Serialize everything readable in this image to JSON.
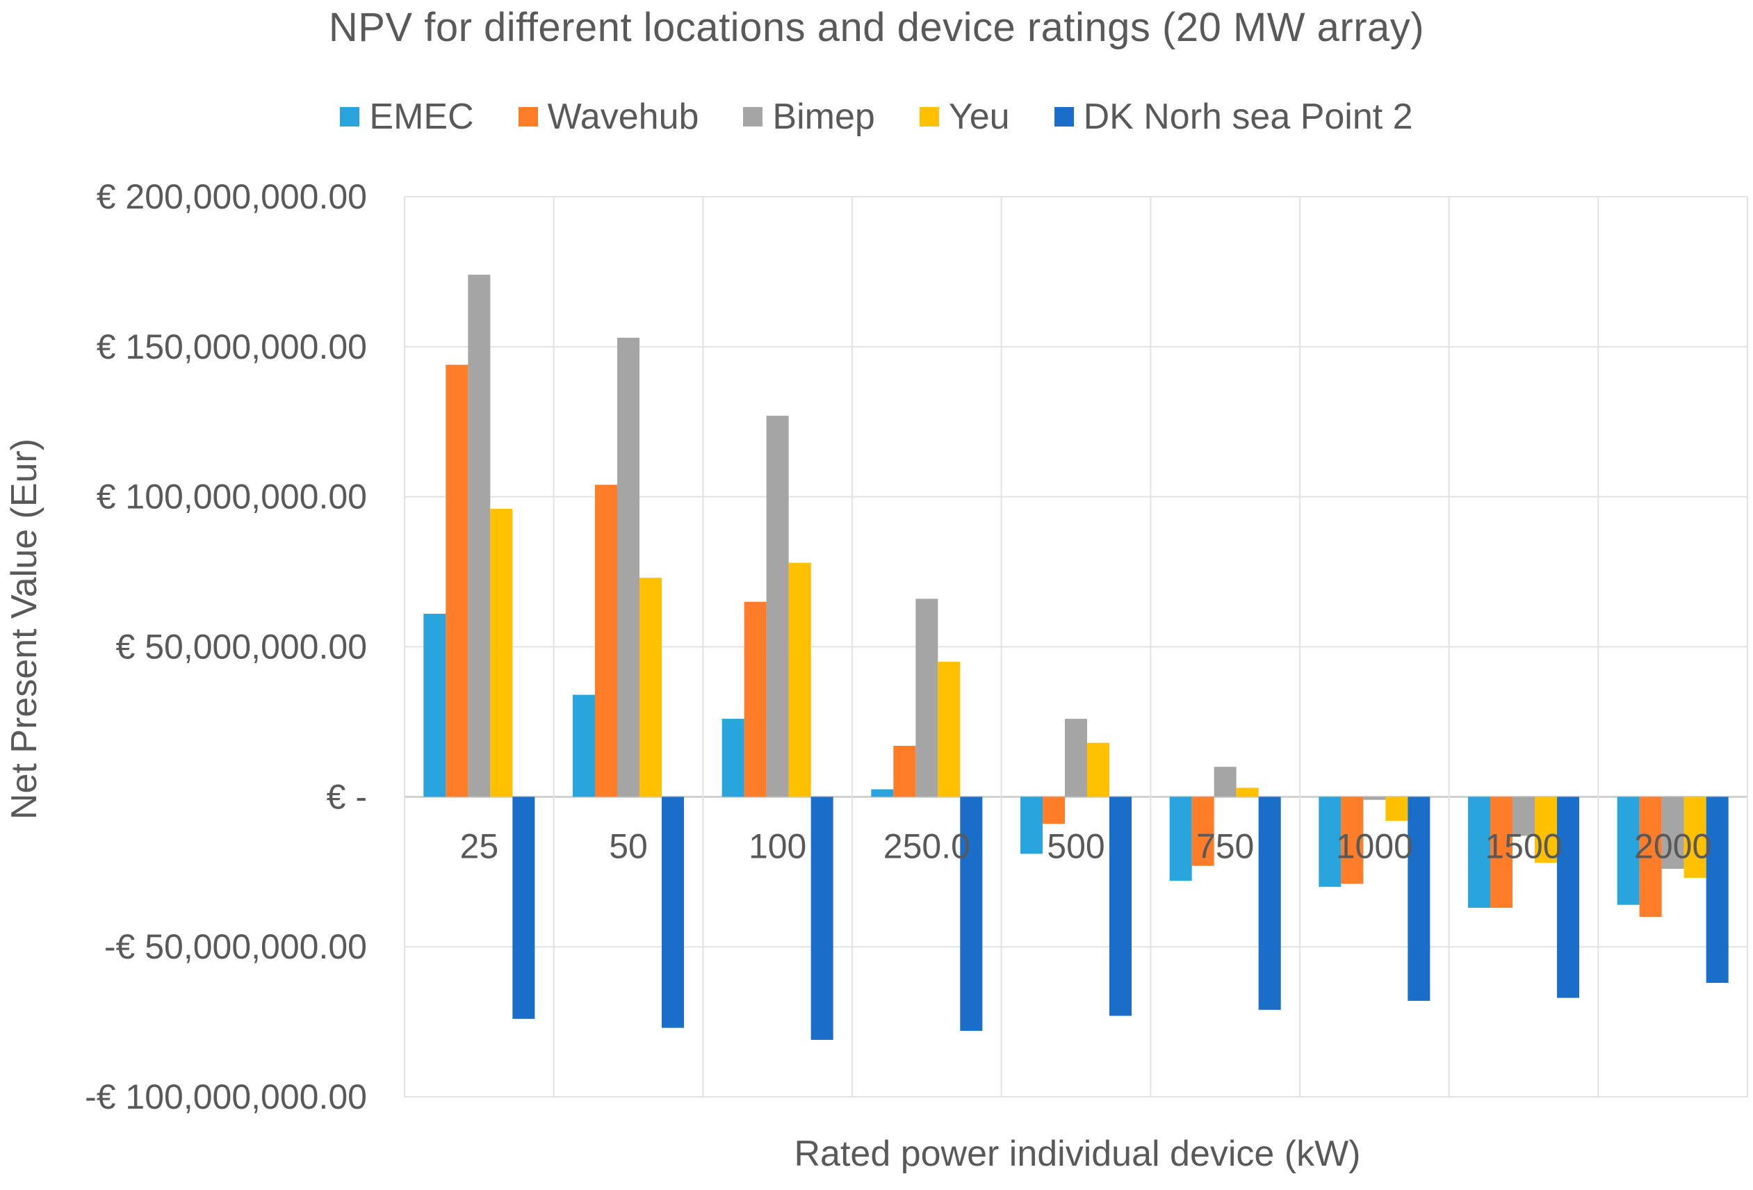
{
  "chart_data": {
    "type": "bar",
    "title": "NPV for different locations and device ratings (20 MW array)",
    "xlabel": "Rated power individual device (kW)",
    "ylabel": "Net Present Value (Eur)",
    "categories": [
      "25",
      "50",
      "100",
      "250.0",
      "500",
      "750",
      "1000",
      "1500",
      "2000"
    ],
    "ylim": [
      -100000000,
      200000000
    ],
    "yticks": [
      {
        "value": 200000000,
        "label": "€ 200,000,000.00"
      },
      {
        "value": 150000000,
        "label": "€ 150,000,000.00"
      },
      {
        "value": 100000000,
        "label": "€ 100,000,000.00"
      },
      {
        "value": 50000000,
        "label": "€ 50,000,000.00"
      },
      {
        "value": 0,
        "label": "€ -"
      },
      {
        "value": -50000000,
        "label": "-€ 50,000,000.00"
      },
      {
        "value": -100000000,
        "label": "-€ 100,000,000.00"
      }
    ],
    "grid": true,
    "legend_position": "top",
    "series": [
      {
        "name": "EMEC",
        "color": "#2aa4dd",
        "values": [
          61000000,
          34000000,
          26000000,
          2500000,
          -19000000,
          -28000000,
          -30000000,
          -37000000,
          -36000000
        ]
      },
      {
        "name": "Wavehub",
        "color": "#ff7c29",
        "values": [
          144000000,
          104000000,
          65000000,
          17000000,
          -9000000,
          -23000000,
          -29000000,
          -37000000,
          -40000000
        ]
      },
      {
        "name": "Bimep",
        "color": "#a5a5a5",
        "values": [
          174000000,
          153000000,
          127000000,
          66000000,
          26000000,
          10000000,
          -1000000,
          -13000000,
          -24000000
        ]
      },
      {
        "name": "Yeu",
        "color": "#ffc000",
        "values": [
          96000000,
          73000000,
          78000000,
          45000000,
          18000000,
          3000000,
          -8000000,
          -22000000,
          -27000000
        ]
      },
      {
        "name": "DK Norh sea Point 2",
        "color": "#1a6dc8",
        "values": [
          -74000000,
          -77000000,
          -81000000,
          -78000000,
          -73000000,
          -71000000,
          -68000000,
          -67000000,
          -62000000
        ]
      }
    ]
  }
}
